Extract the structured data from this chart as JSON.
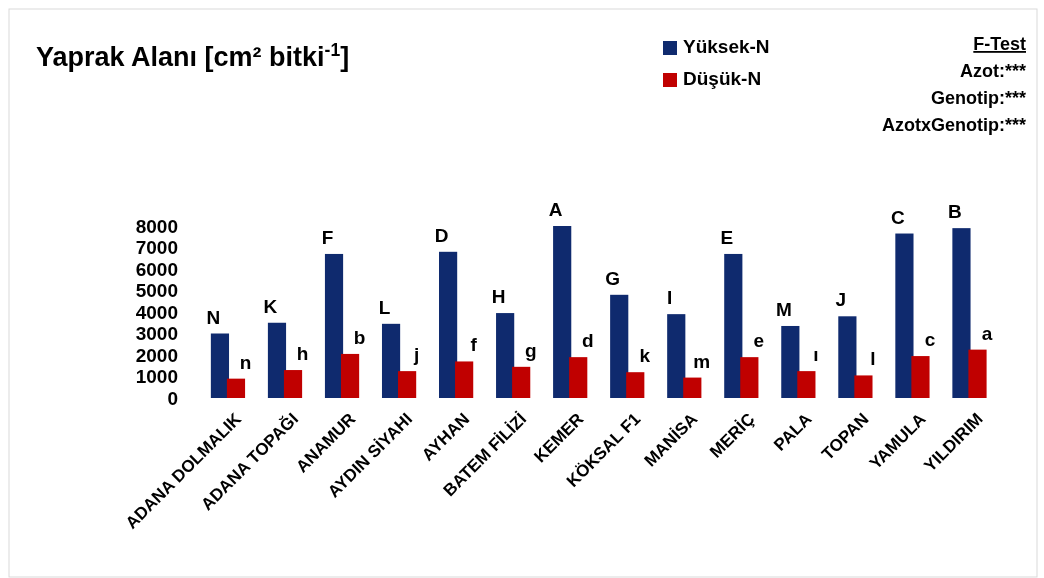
{
  "chart_data": {
    "type": "bar",
    "title": "Yaprak Alanı [cm² bitki$^{-1}$]",
    "categories": [
      "ADANA DOLMALIK",
      "ADANA TOPAĞI",
      "ANAMUR",
      "AYDIN SİYAHI",
      "AYHAN",
      "BATEM FİLİZİ",
      "KEMER",
      "KÖKSAL F1",
      "MANİSA",
      "MERİÇ",
      "PALA",
      "TOPAN",
      "YAMULA",
      "YILDIRIM"
    ],
    "series": [
      {
        "name": "Yüksek-N",
        "color": "#0f2a6e",
        "values": [
          3000,
          3500,
          6700,
          3450,
          6800,
          3950,
          8000,
          4800,
          3900,
          6700,
          3350,
          3800,
          7650,
          7900
        ],
        "value_labels": [
          "N",
          "K",
          "F",
          "L",
          "D",
          "H",
          "A",
          "G",
          "I",
          "E",
          "M",
          "J",
          "C",
          "B"
        ]
      },
      {
        "name": "Düşük-N",
        "color": "#c00000",
        "values": [
          900,
          1300,
          2050,
          1250,
          1700,
          1450,
          1900,
          1200,
          950,
          1900,
          1250,
          1050,
          1950,
          2250
        ],
        "value_labels": [
          "n",
          "h",
          "b",
          "j",
          "f",
          "g",
          "d",
          "k",
          "m",
          "e",
          "ı",
          "l",
          "c",
          "a"
        ]
      }
    ],
    "ylim": [
      0,
      8000
    ],
    "yticks": [
      0,
      1000,
      2000,
      3000,
      4000,
      5000,
      6000,
      7000,
      8000
    ],
    "grid": false,
    "legend": "top",
    "annotations": [
      "F-Test",
      "Azot:***",
      "Genotip:***",
      "AzotxGenotip:***"
    ]
  }
}
